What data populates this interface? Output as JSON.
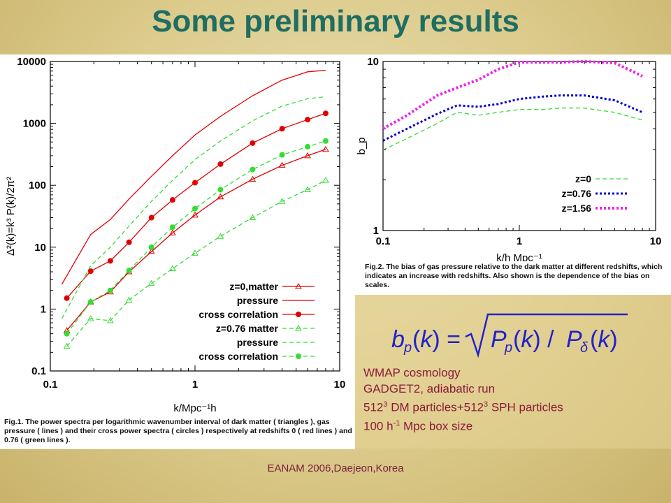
{
  "slide": {
    "title": "Some preliminary results",
    "footer": "EANAM 2006,Daejeon,Korea"
  },
  "figure1": {
    "caption": "Fig.1. The power spectra per logarithmic wavenumber interval of dark matter ( triangles ), gas pressure ( lines ) and their cross power spectra ( circles ) respectively at redshifts 0 ( red lines ) and 0.76 ( green lines )."
  },
  "figure2": {
    "caption": "Fig.2. The bias of gas pressure relative to the dark matter at different redshifts, which indicates an increase with redshifts. Also shown is the dependence of the bias on scales."
  },
  "info": {
    "formula": "b_p(k) = √(P_p(k) / P_δ(k))",
    "lines": [
      {
        "text": "WMAP cosmology"
      },
      {
        "text": "GADGET2, adiabatic run"
      },
      {
        "pre": "512",
        "sup": "3",
        "mid": " DM particles+512",
        "sup2": "3",
        "post": " SPH particles"
      },
      {
        "pre": "100 h",
        "sup": "-1",
        "post": " Mpc box size"
      }
    ]
  },
  "colors": {
    "red": "#e00000",
    "green": "#33dd33",
    "blue": "#0000cc",
    "magenta": "#ee22ee",
    "title": "#1f6e62"
  },
  "chart_data": [
    {
      "type": "line",
      "xlabel": "k/Mpc⁻¹h",
      "ylabel": "Δ²(k)=k³ P(k)/2π²",
      "xscale": "log",
      "yscale": "log",
      "xlim": [
        0.1,
        10
      ],
      "ylim": [
        0.1,
        10000
      ],
      "xticks": [
        "0.1",
        "1",
        "10"
      ],
      "yticks": [
        "0.1",
        "1",
        "10",
        "100",
        "1000",
        "10000"
      ],
      "legend_position": "bottom-right",
      "series": [
        {
          "name": "z=0,matter",
          "color": "#e00000",
          "style": "line-triangles",
          "x": [
            0.13,
            0.19,
            0.26,
            0.35,
            0.5,
            0.7,
            1.0,
            1.5,
            2.5,
            4.0,
            6.0,
            8.0
          ],
          "y": [
            0.45,
            1.3,
            1.9,
            4.0,
            8.5,
            17,
            33,
            65,
            125,
            210,
            300,
            380
          ]
        },
        {
          "name": "pressure",
          "color": "#e00000",
          "style": "solid",
          "x": [
            0.12,
            0.19,
            0.26,
            0.35,
            0.5,
            0.7,
            1.0,
            1.5,
            2.5,
            4.0,
            6.0,
            8.0
          ],
          "y": [
            2.5,
            16,
            28,
            60,
            140,
            300,
            650,
            1300,
            2800,
            5000,
            6800,
            7200
          ]
        },
        {
          "name": "cross correlation",
          "color": "#e00000",
          "style": "line-circles",
          "x": [
            0.13,
            0.19,
            0.26,
            0.35,
            0.5,
            0.7,
            1.0,
            1.5,
            2.5,
            4.0,
            6.0,
            8.0
          ],
          "y": [
            1.5,
            4.1,
            6.0,
            12,
            30,
            58,
            110,
            220,
            480,
            820,
            1150,
            1450
          ]
        },
        {
          "name": "z=0.76 matter",
          "color": "#33dd33",
          "style": "dashed-triangles",
          "x": [
            0.13,
            0.19,
            0.26,
            0.35,
            0.5,
            0.7,
            1.0,
            1.5,
            2.5,
            4.0,
            6.0,
            8.0
          ],
          "y": [
            0.25,
            0.7,
            0.65,
            1.4,
            2.6,
            4.5,
            8.0,
            15,
            30,
            55,
            85,
            120
          ]
        },
        {
          "name": "pressure",
          "color": "#33dd33",
          "style": "dashed",
          "x": [
            0.12,
            0.19,
            0.26,
            0.35,
            0.5,
            0.7,
            1.0,
            1.5,
            2.5,
            4.0,
            6.0,
            8.0
          ],
          "y": [
            0.7,
            5.0,
            10,
            22,
            55,
            120,
            260,
            520,
            1100,
            1900,
            2500,
            2700
          ]
        },
        {
          "name": "cross correlation",
          "color": "#33dd33",
          "style": "dashed-circles",
          "x": [
            0.13,
            0.19,
            0.26,
            0.35,
            0.5,
            0.7,
            1.0,
            1.5,
            2.5,
            4.0,
            6.0,
            8.0
          ],
          "y": [
            0.4,
            1.3,
            2.0,
            4.2,
            10,
            21,
            42,
            85,
            180,
            310,
            420,
            520
          ]
        }
      ]
    },
    {
      "type": "line",
      "xlabel": "k/h Mpc⁻¹",
      "ylabel": "b_p",
      "xscale": "log",
      "yscale": "log",
      "xlim": [
        0.1,
        10
      ],
      "ylim": [
        1,
        10
      ],
      "xticks": [
        "0.1",
        "1",
        "10"
      ],
      "yticks": [
        "1",
        "10"
      ],
      "legend_position": "bottom-right",
      "series": [
        {
          "name": "z=0",
          "color": "#33dd33",
          "style": "dashed",
          "x": [
            0.1,
            0.15,
            0.25,
            0.35,
            0.5,
            0.7,
            1.0,
            1.5,
            2.0,
            3.0,
            5.0,
            8.0
          ],
          "y": [
            3.0,
            3.5,
            4.3,
            5.0,
            4.8,
            5.0,
            5.2,
            5.2,
            5.3,
            5.3,
            5.0,
            4.5
          ]
        },
        {
          "name": "z=0.76",
          "color": "#0000cc",
          "style": "dotted",
          "x": [
            0.1,
            0.15,
            0.25,
            0.35,
            0.5,
            0.7,
            1.0,
            1.5,
            2.0,
            3.0,
            5.0,
            8.0
          ],
          "y": [
            3.4,
            4.0,
            4.9,
            5.5,
            5.4,
            5.6,
            6.0,
            6.2,
            6.3,
            6.3,
            5.9,
            5.0
          ]
        },
        {
          "name": "z=1.56",
          "color": "#ee22ee",
          "style": "dotted-thick",
          "x": [
            0.1,
            0.15,
            0.25,
            0.35,
            0.5,
            0.7,
            1.0,
            1.5,
            2.0,
            3.0,
            5.0,
            8.0
          ],
          "y": [
            4.0,
            4.8,
            6.3,
            7.0,
            7.8,
            9.0,
            9.9,
            9.9,
            9.9,
            10.0,
            9.8,
            8.2
          ]
        }
      ]
    }
  ]
}
